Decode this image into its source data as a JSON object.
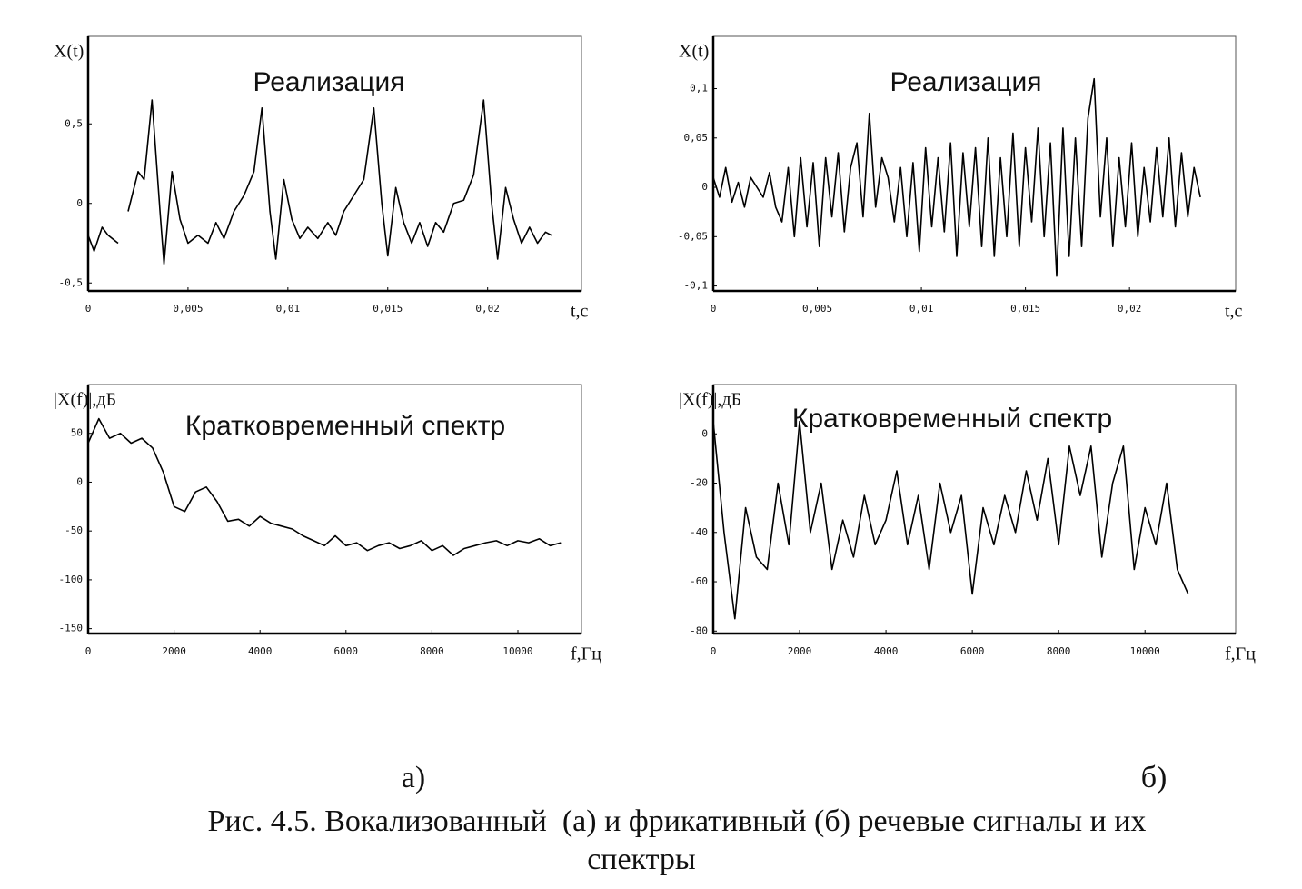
{
  "chart_data": [
    {
      "type": "line",
      "title": "Реализация",
      "y_label": "X(t)",
      "x_label": "t,c",
      "color": "#000000",
      "xlim": [
        0,
        0.0247
      ],
      "ylim": [
        -0.55,
        1.05
      ],
      "xticks": [
        0,
        {
          "value": 0.005,
          "label": "0,005"
        },
        {
          "value": 0.01,
          "label": "0,01"
        },
        {
          "value": 0.015,
          "label": "0,015"
        },
        {
          "value": 0.02,
          "label": "0,02"
        }
      ],
      "yticks": [
        {
          "value": 0.5,
          "label": "0,5"
        },
        0,
        {
          "value": -0.5,
          "label": "-0,5"
        }
      ],
      "x": [
        0,
        0.0003,
        0.0007,
        0.001,
        0.0015,
        0.0017,
        0.002,
        0.0025,
        0.0028,
        0.0032,
        0.0036,
        0.0038,
        0.0042,
        0.0046,
        0.005,
        0.0055,
        0.006,
        0.0064,
        0.0068,
        0.0073,
        0.0078,
        0.0083,
        0.0087,
        0.0091,
        0.0094,
        0.0098,
        0.0102,
        0.0106,
        0.011,
        0.0115,
        0.012,
        0.0124,
        0.0128,
        0.0133,
        0.0138,
        0.0143,
        0.0147,
        0.015,
        0.0154,
        0.0158,
        0.0162,
        0.0166,
        0.017,
        0.0174,
        0.0178,
        0.0183,
        0.0188,
        0.0193,
        0.0198,
        0.0202,
        0.0205,
        0.0209,
        0.0213,
        0.0217,
        0.0221,
        0.0225,
        0.0229,
        0.0232
      ],
      "values": [
        -0.2,
        -0.3,
        -0.15,
        -0.2,
        -0.25,
        null,
        -0.05,
        0.2,
        0.15,
        0.65,
        -0.05,
        -0.38,
        0.2,
        -0.1,
        -0.25,
        -0.2,
        -0.25,
        -0.12,
        -0.22,
        -0.05,
        0.05,
        0.2,
        0.6,
        -0.05,
        -0.35,
        0.15,
        -0.1,
        -0.22,
        -0.15,
        -0.22,
        -0.12,
        -0.2,
        -0.05,
        0.05,
        0.15,
        0.6,
        0,
        -0.33,
        0.1,
        -0.12,
        -0.25,
        -0.12,
        -0.27,
        -0.12,
        -0.18,
        0,
        0.02,
        0.18,
        0.65,
        0,
        -0.35,
        0.1,
        -0.1,
        -0.25,
        -0.15,
        -0.25,
        -0.18,
        -0.2
      ]
    },
    {
      "type": "line",
      "title": "Реализация",
      "y_label": "X(t)",
      "x_label": "t,c",
      "color": "#000000",
      "xlim": [
        0,
        0.0251
      ],
      "ylim": [
        -0.105,
        0.153
      ],
      "xticks": [
        0,
        {
          "value": 0.005,
          "label": "0,005"
        },
        {
          "value": 0.01,
          "label": "0,01"
        },
        {
          "value": 0.015,
          "label": "0,015"
        },
        {
          "value": 0.02,
          "label": "0,02"
        }
      ],
      "yticks": [
        {
          "value": 0.1,
          "label": "0,1"
        },
        {
          "value": 0.05,
          "label": "0,05"
        },
        0,
        {
          "value": -0.05,
          "label": "-0,05"
        },
        {
          "value": -0.1,
          "label": "-0,1"
        }
      ],
      "x": [
        0,
        0.0003,
        0.0006,
        0.0009,
        0.0012,
        0.0015,
        0.0018,
        0.0021,
        0.0024,
        0.0027,
        0.003,
        0.0033,
        0.0036,
        0.0039,
        0.0042,
        0.0045,
        0.0048,
        0.0051,
        0.0054,
        0.0057,
        0.006,
        0.0063,
        0.0066,
        0.0069,
        0.0072,
        0.0075,
        0.0078,
        0.0081,
        0.0084,
        0.0087,
        0.009,
        0.0093,
        0.0096,
        0.0099,
        0.0102,
        0.0105,
        0.0108,
        0.0111,
        0.0114,
        0.0117,
        0.012,
        0.0123,
        0.0126,
        0.0129,
        0.0132,
        0.0135,
        0.0138,
        0.0141,
        0.0144,
        0.0147,
        0.015,
        0.0153,
        0.0156,
        0.0159,
        0.0162,
        0.0165,
        0.0168,
        0.0171,
        0.0174,
        0.0177,
        0.018,
        0.0183,
        0.0186,
        0.0189,
        0.0192,
        0.0195,
        0.0198,
        0.0201,
        0.0204,
        0.0207,
        0.021,
        0.0213,
        0.0216,
        0.0219,
        0.0222,
        0.0225,
        0.0228,
        0.0231,
        0.0234
      ],
      "values": [
        0.01,
        -0.01,
        0.02,
        -0.015,
        0.005,
        -0.02,
        0.01,
        0.0,
        -0.01,
        0.015,
        -0.02,
        -0.035,
        0.02,
        -0.05,
        0.03,
        -0.04,
        0.025,
        -0.06,
        0.03,
        -0.03,
        0.035,
        -0.045,
        0.02,
        0.045,
        -0.03,
        0.075,
        -0.02,
        0.03,
        0.01,
        -0.035,
        0.02,
        -0.05,
        0.025,
        -0.065,
        0.04,
        -0.04,
        0.03,
        -0.045,
        0.045,
        -0.07,
        0.035,
        -0.04,
        0.04,
        -0.06,
        0.05,
        -0.07,
        0.03,
        -0.05,
        0.055,
        -0.06,
        0.04,
        -0.035,
        0.06,
        -0.05,
        0.045,
        -0.09,
        0.06,
        -0.07,
        0.05,
        -0.06,
        0.07,
        0.11,
        -0.03,
        0.05,
        -0.06,
        0.03,
        -0.04,
        0.045,
        -0.05,
        0.02,
        -0.035,
        0.04,
        -0.03,
        0.05,
        -0.04,
        0.035,
        -0.03,
        0.02,
        -0.01
      ]
    },
    {
      "type": "line",
      "title": "Кратковременный спектр",
      "y_label": "|X(f)|,дБ",
      "x_label": "f,Гц",
      "color": "#000000",
      "xlim": [
        0,
        11480
      ],
      "ylim": [
        -155,
        100
      ],
      "xticks": [
        0,
        2000,
        4000,
        6000,
        8000,
        10000
      ],
      "yticks": [
        50,
        0,
        -50,
        -100,
        -150
      ],
      "x": [
        0,
        250,
        500,
        750,
        1000,
        1250,
        1500,
        1750,
        2000,
        2250,
        2500,
        2750,
        3000,
        3250,
        3500,
        3750,
        4000,
        4250,
        4500,
        4750,
        5000,
        5250,
        5500,
        5750,
        6000,
        6250,
        6500,
        6750,
        7000,
        7250,
        7500,
        7750,
        8000,
        8250,
        8500,
        8750,
        9000,
        9250,
        9500,
        9750,
        10000,
        10250,
        10500,
        10750,
        11000
      ],
      "values": [
        40,
        65,
        45,
        50,
        40,
        45,
        35,
        10,
        -25,
        -30,
        -10,
        -5,
        -20,
        -40,
        -38,
        -45,
        -35,
        -42,
        -45,
        -48,
        -55,
        -60,
        -65,
        -55,
        -65,
        -62,
        -70,
        -65,
        -62,
        -68,
        -65,
        -60,
        -70,
        -65,
        -75,
        -68,
        -65,
        -62,
        -60,
        -65,
        -60,
        -62,
        -58,
        -65,
        -62
      ]
    },
    {
      "type": "line",
      "title": "Кратковременный спектр",
      "y_label": "|X(f)|,дБ",
      "x_label": "f,Гц",
      "color": "#000000",
      "xlim": [
        0,
        12100
      ],
      "ylim": [
        -81,
        20
      ],
      "xticks": [
        0,
        2000,
        4000,
        6000,
        8000,
        10000
      ],
      "yticks": [
        0,
        -20,
        -40,
        -60,
        -80
      ],
      "x": [
        0,
        250,
        500,
        750,
        1000,
        1250,
        1500,
        1750,
        2000,
        2250,
        2500,
        2750,
        3000,
        3250,
        3500,
        3750,
        4000,
        4250,
        4500,
        4750,
        5000,
        5250,
        5500,
        5750,
        6000,
        6250,
        6500,
        6750,
        7000,
        7250,
        7500,
        7750,
        8000,
        8250,
        8500,
        8750,
        9000,
        9250,
        9500,
        9750,
        10000,
        10250,
        10500,
        10750,
        11000
      ],
      "values": [
        5,
        -40,
        -75,
        -30,
        -50,
        -55,
        -20,
        -45,
        5,
        -40,
        -20,
        -55,
        -35,
        -50,
        -25,
        -45,
        -35,
        -15,
        -45,
        -25,
        -55,
        -20,
        -40,
        -25,
        -65,
        -30,
        -45,
        -25,
        -40,
        -15,
        -35,
        -10,
        -45,
        -5,
        -25,
        -5,
        -50,
        -20,
        -5,
        -55,
        -30,
        -45,
        -20,
        -55,
        -65
      ]
    }
  ],
  "panel_labels": [
    "а)",
    "б)"
  ],
  "caption": [
    "Рис. 4.5. Вокализованный  (а) и фрикативный (б) речевые сигналы и их",
    "спектры"
  ]
}
